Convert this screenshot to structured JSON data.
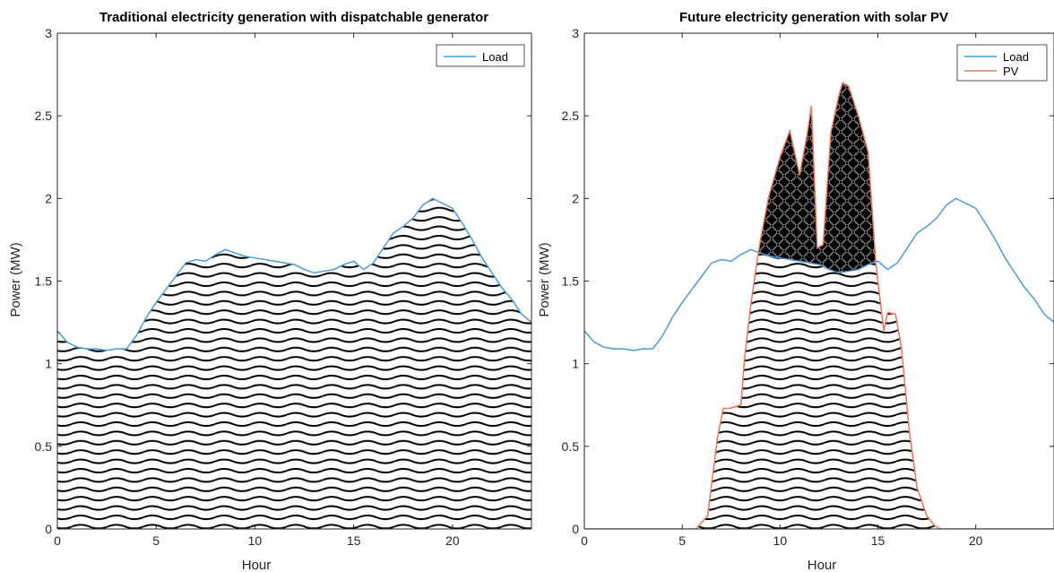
{
  "colors": {
    "load": "#4a9cd6",
    "pv": "#e8755a",
    "hatch": "#000000",
    "axis": "#262626"
  },
  "chart_data": [
    {
      "type": "area",
      "title": "Traditional electricity generation with dispatchable generator",
      "xlabel": "Hour",
      "ylabel": "Power (MW)",
      "xlim": [
        0,
        24
      ],
      "ylim": [
        0,
        3
      ],
      "xticks": [
        "0",
        "5",
        "10",
        "15",
        "20"
      ],
      "yticks": [
        "0",
        "0.5",
        "1",
        "1.5",
        "2",
        "2.5",
        "3"
      ],
      "legend": {
        "position": "top-right",
        "entries": [
          "Load"
        ]
      },
      "series": [
        {
          "name": "Load",
          "x": [
            0,
            0.5,
            1,
            1.5,
            2,
            2.5,
            3,
            3.5,
            4,
            4.5,
            5,
            5.5,
            6,
            6.5,
            7,
            7.5,
            8,
            8.5,
            9,
            9.5,
            10,
            10.5,
            11,
            11.5,
            12,
            12.5,
            13,
            13.5,
            14,
            14.5,
            15,
            15.5,
            16,
            16.5,
            17,
            17.5,
            18,
            18.5,
            19,
            19.5,
            20,
            20.5,
            21,
            21.5,
            22,
            22.5,
            23,
            23.5,
            24
          ],
          "y": [
            1.2,
            1.13,
            1.1,
            1.09,
            1.09,
            1.08,
            1.09,
            1.09,
            1.17,
            1.28,
            1.37,
            1.45,
            1.53,
            1.61,
            1.63,
            1.62,
            1.66,
            1.69,
            1.67,
            1.65,
            1.64,
            1.63,
            1.62,
            1.61,
            1.6,
            1.57,
            1.55,
            1.56,
            1.57,
            1.6,
            1.62,
            1.57,
            1.61,
            1.7,
            1.79,
            1.83,
            1.88,
            1.96,
            2.0,
            1.97,
            1.94,
            1.85,
            1.75,
            1.64,
            1.55,
            1.46,
            1.39,
            1.3,
            1.25
          ]
        }
      ]
    },
    {
      "type": "area",
      "title": "Future electricity generation with solar PV",
      "xlabel": "Hour",
      "ylabel": "Power (MW)",
      "xlim": [
        0,
        24
      ],
      "ylim": [
        0,
        3
      ],
      "xticks": [
        "0",
        "5",
        "10",
        "15",
        "20"
      ],
      "yticks": [
        "0",
        "0.5",
        "1",
        "1.5",
        "2",
        "2.5",
        "3"
      ],
      "legend": {
        "position": "top-right",
        "entries": [
          "Load",
          "PV"
        ]
      },
      "series": [
        {
          "name": "Load",
          "x": [
            0,
            0.5,
            1,
            1.5,
            2,
            2.5,
            3,
            3.5,
            4,
            4.5,
            5,
            5.5,
            6,
            6.5,
            7,
            7.5,
            8,
            8.5,
            9,
            9.5,
            10,
            10.5,
            11,
            11.5,
            12,
            12.5,
            13,
            13.5,
            14,
            14.5,
            15,
            15.5,
            16,
            16.5,
            17,
            17.5,
            18,
            18.5,
            19,
            19.5,
            20,
            20.5,
            21,
            21.5,
            22,
            22.5,
            23,
            23.5,
            24
          ],
          "y": [
            1.2,
            1.13,
            1.1,
            1.09,
            1.09,
            1.08,
            1.09,
            1.09,
            1.17,
            1.28,
            1.37,
            1.45,
            1.53,
            1.61,
            1.63,
            1.62,
            1.66,
            1.69,
            1.67,
            1.65,
            1.64,
            1.63,
            1.62,
            1.61,
            1.6,
            1.57,
            1.55,
            1.56,
            1.57,
            1.6,
            1.62,
            1.57,
            1.61,
            1.7,
            1.79,
            1.83,
            1.88,
            1.96,
            2.0,
            1.97,
            1.94,
            1.85,
            1.75,
            1.64,
            1.55,
            1.46,
            1.39,
            1.3,
            1.25
          ]
        },
        {
          "name": "PV",
          "x": [
            0,
            5.7,
            6.3,
            6.8,
            7.1,
            7.4,
            8.0,
            8.2,
            8.5,
            8.8,
            9.0,
            9.4,
            10.0,
            10.5,
            11.0,
            11.4,
            11.6,
            11.9,
            12.2,
            12.6,
            13.0,
            13.2,
            13.5,
            14.0,
            14.5,
            14.9,
            15.1,
            15.3,
            15.5,
            15.9,
            16.2,
            16.6,
            17.0,
            17.5,
            17.9,
            18.2,
            24
          ],
          "y": [
            0,
            0,
            0.08,
            0.55,
            0.73,
            0.73,
            0.75,
            1.05,
            1.35,
            1.6,
            1.75,
            2.0,
            2.25,
            2.41,
            2.14,
            2.4,
            2.56,
            1.7,
            1.72,
            2.4,
            2.62,
            2.7,
            2.68,
            2.5,
            2.28,
            1.6,
            1.4,
            1.2,
            1.31,
            1.3,
            1.1,
            0.6,
            0.25,
            0.08,
            0.02,
            0,
            0
          ]
        }
      ]
    }
  ]
}
